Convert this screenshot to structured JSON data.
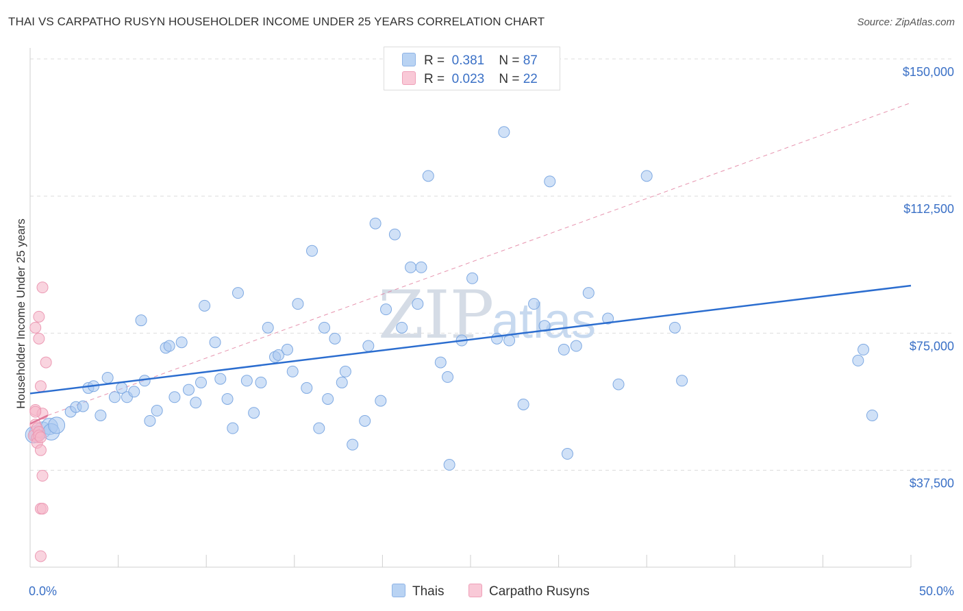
{
  "header": {
    "title": "THAI VS CARPATHO RUSYN HOUSEHOLDER INCOME UNDER 25 YEARS CORRELATION CHART",
    "source": "Source: ZipAtlas.com"
  },
  "legend": {
    "thais": {
      "r_label": "R =",
      "r_value": "0.381",
      "n_label": "N =",
      "n_value": "87"
    },
    "rusyns": {
      "r_label": "R =",
      "r_value": "0.023",
      "n_label": "N =",
      "n_value": "22"
    }
  },
  "watermark": {
    "zip": "ZIP",
    "atlas": "atlas"
  },
  "chart_data": {
    "type": "scatter",
    "xlabel": "",
    "ylabel": "Householder Income Under 25 years",
    "xlim": [
      0,
      50
    ],
    "ylim": [
      11000,
      153000
    ],
    "x_tick_labels": [
      "0.0%",
      "50.0%"
    ],
    "y_ticks": [
      37500,
      75000,
      112500,
      150000
    ],
    "y_tick_labels": [
      "$37,500",
      "$75,000",
      "$112,500",
      "$150,000"
    ],
    "grid": "horizontal dashed",
    "legend_position": "top-center and bottom",
    "colors": {
      "thais": "#a9c8f0",
      "thais_line": "#2b6dcf",
      "rusyns": "#f5b7c9",
      "rusyns_line": "#e07799"
    },
    "series": [
      {
        "name": "Thais",
        "trend": {
          "x": [
            0,
            50
          ],
          "y": [
            58500,
            88000
          ],
          "style": "solid"
        },
        "points": [
          [
            0.4,
            47500
          ],
          [
            0.7,
            48500
          ],
          [
            1.1,
            49500
          ],
          [
            1.2,
            48000
          ],
          [
            1.5,
            49800
          ],
          [
            2.3,
            53500
          ],
          [
            2.6,
            54800
          ],
          [
            3.0,
            55000
          ],
          [
            3.3,
            60000
          ],
          [
            3.6,
            60500
          ],
          [
            4.0,
            52500
          ],
          [
            4.4,
            62800
          ],
          [
            4.8,
            57500
          ],
          [
            5.2,
            60000
          ],
          [
            5.5,
            57500
          ],
          [
            5.9,
            59000
          ],
          [
            6.3,
            78500
          ],
          [
            6.5,
            62000
          ],
          [
            6.8,
            51000
          ],
          [
            7.2,
            53800
          ],
          [
            7.7,
            71000
          ],
          [
            7.9,
            71500
          ],
          [
            8.2,
            57500
          ],
          [
            8.6,
            72500
          ],
          [
            9.0,
            59500
          ],
          [
            9.4,
            56000
          ],
          [
            9.7,
            61500
          ],
          [
            9.9,
            82500
          ],
          [
            10.5,
            72500
          ],
          [
            10.8,
            62500
          ],
          [
            11.2,
            57000
          ],
          [
            11.5,
            49000
          ],
          [
            11.8,
            86000
          ],
          [
            12.3,
            62000
          ],
          [
            12.7,
            53200
          ],
          [
            13.1,
            61500
          ],
          [
            13.5,
            76500
          ],
          [
            13.9,
            68500
          ],
          [
            14.1,
            69000
          ],
          [
            14.6,
            70500
          ],
          [
            14.9,
            64500
          ],
          [
            15.2,
            83000
          ],
          [
            15.7,
            60000
          ],
          [
            16.0,
            97500
          ],
          [
            16.4,
            49000
          ],
          [
            16.7,
            76500
          ],
          [
            16.9,
            57000
          ],
          [
            17.3,
            73500
          ],
          [
            17.7,
            61500
          ],
          [
            17.9,
            64500
          ],
          [
            18.3,
            44500
          ],
          [
            19.0,
            51000
          ],
          [
            19.2,
            71500
          ],
          [
            19.6,
            105000
          ],
          [
            19.9,
            56500
          ],
          [
            20.2,
            81500
          ],
          [
            20.7,
            102000
          ],
          [
            21.1,
            76500
          ],
          [
            21.6,
            93000
          ],
          [
            22.0,
            83000
          ],
          [
            22.2,
            93000
          ],
          [
            22.6,
            118000
          ],
          [
            23.3,
            67000
          ],
          [
            23.7,
            63000
          ],
          [
            23.8,
            39000
          ],
          [
            24.5,
            73000
          ],
          [
            25.1,
            90000
          ],
          [
            26.5,
            73500
          ],
          [
            26.9,
            130000
          ],
          [
            27.2,
            73000
          ],
          [
            28.0,
            55500
          ],
          [
            28.6,
            83000
          ],
          [
            29.2,
            77000
          ],
          [
            29.5,
            116500
          ],
          [
            30.3,
            70500
          ],
          [
            30.5,
            42000
          ],
          [
            31.0,
            71500
          ],
          [
            31.7,
            86000
          ],
          [
            32.8,
            79000
          ],
          [
            33.4,
            61000
          ],
          [
            35.0,
            118000
          ],
          [
            36.6,
            76500
          ],
          [
            37.0,
            62000
          ],
          [
            47.0,
            67500
          ],
          [
            47.3,
            70500
          ],
          [
            47.8,
            52500
          ],
          [
            0.2,
            47200
          ]
        ]
      },
      {
        "name": "Carpatho Rusyns",
        "trend": {
          "x": [
            0,
            1.0
          ],
          "y": [
            50200,
            52500
          ],
          "style": "solid"
        },
        "trend_ext": {
          "x": [
            1.0,
            50
          ],
          "y": [
            52500,
            138000
          ],
          "style": "dashed"
        },
        "points": [
          [
            0.2,
            47000
          ],
          [
            0.3,
            76500
          ],
          [
            0.3,
            54000
          ],
          [
            0.3,
            50000
          ],
          [
            0.4,
            49000
          ],
          [
            0.4,
            46500
          ],
          [
            0.4,
            45000
          ],
          [
            0.5,
            73500
          ],
          [
            0.5,
            79500
          ],
          [
            0.5,
            48000
          ],
          [
            0.5,
            47000
          ],
          [
            0.6,
            60500
          ],
          [
            0.6,
            46500
          ],
          [
            0.6,
            43000
          ],
          [
            0.6,
            27000
          ],
          [
            0.6,
            14000
          ],
          [
            0.7,
            87500
          ],
          [
            0.7,
            53000
          ],
          [
            0.7,
            36000
          ],
          [
            0.7,
            27000
          ],
          [
            0.9,
            67000
          ],
          [
            0.3,
            53500
          ]
        ]
      }
    ]
  },
  "bottom_legend": {
    "thais": "Thais",
    "rusyns": "Carpatho Rusyns"
  }
}
